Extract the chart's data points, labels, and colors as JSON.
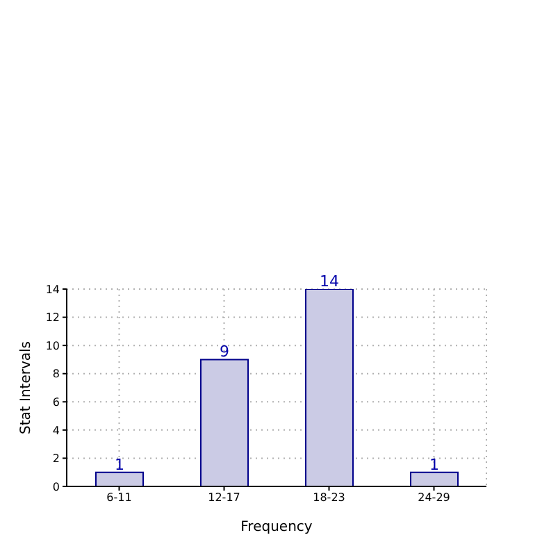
{
  "chart_data": {
    "type": "bar",
    "xlabel": "Frequency",
    "ylabel": "Stat Intervals",
    "categories": [
      "6-11",
      "12-17",
      "18-23",
      "24-29"
    ],
    "values": [
      1,
      9,
      14,
      1
    ],
    "color": "#cbcbe5",
    "ylim": [
      0,
      14
    ],
    "yticks": [
      0,
      2,
      4,
      6,
      8,
      10,
      12,
      14
    ],
    "grid": true,
    "data_labels": true
  }
}
